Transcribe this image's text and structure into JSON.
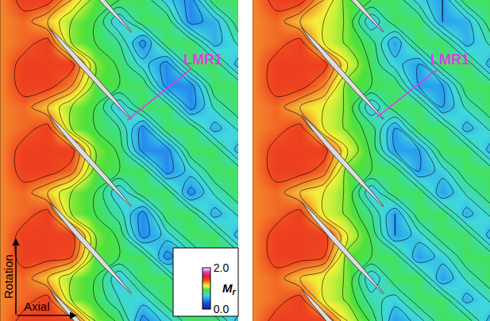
{
  "chart_data": {
    "type": "contour",
    "tick_labels": false,
    "axis_labels": {
      "x": "Axial",
      "y": "Rotation"
    },
    "colorbar": {
      "title": {
        "symbol": "M",
        "subscript": "r"
      },
      "range": [
        0,
        2
      ],
      "ticks": [
        {
          "value": 0,
          "label": "0.0"
        },
        {
          "value": 2,
          "label": "2.0"
        }
      ]
    },
    "panels": [
      {
        "annotation": "LMR1",
        "values": [
          [
            1.3,
            1.45,
            1.45,
            1.2,
            0.95,
            0.9,
            0.88,
            0.65,
            0.45,
            0.88,
            0.88
          ],
          [
            1.3,
            1.35,
            1.2,
            1.0,
            0.9,
            0.6,
            0.88,
            0.88,
            0.45,
            0.55,
            0.88
          ],
          [
            1.3,
            1.35,
            1.45,
            1.0,
            0.9,
            0.8,
            0.45,
            0.88,
            0.88,
            0.55,
            0.72
          ],
          [
            1.3,
            1.45,
            1.45,
            1.45,
            1.0,
            0.88,
            0.65,
            0.45,
            0.88,
            0.88,
            0.55
          ],
          [
            1.3,
            1.45,
            1.45,
            1.3,
            0.95,
            0.9,
            0.88,
            0.45,
            0.45,
            0.88,
            0.88
          ],
          [
            1.3,
            1.35,
            1.2,
            1.0,
            0.9,
            0.6,
            0.88,
            0.88,
            0.45,
            0.72,
            0.88
          ],
          [
            1.3,
            1.35,
            1.45,
            1.0,
            0.9,
            0.8,
            0.45,
            0.88,
            0.88,
            0.55,
            0.72
          ],
          [
            1.3,
            1.45,
            1.45,
            1.45,
            1.0,
            0.88,
            0.45,
            0.45,
            0.88,
            0.88,
            0.55
          ],
          [
            1.3,
            1.45,
            1.45,
            1.35,
            0.95,
            0.9,
            0.88,
            0.45,
            0.65,
            0.88,
            0.88
          ],
          [
            1.3,
            1.35,
            1.2,
            1.0,
            0.9,
            0.6,
            0.88,
            0.88,
            0.45,
            0.72,
            0.88
          ],
          [
            1.3,
            1.35,
            1.45,
            1.0,
            0.9,
            0.75,
            0.45,
            0.88,
            0.88,
            0.55,
            0.72
          ],
          [
            1.3,
            1.45,
            1.45,
            1.45,
            1.0,
            0.88,
            0.45,
            0.65,
            0.88,
            0.88,
            0.55
          ],
          [
            1.3,
            1.45,
            1.45,
            1.4,
            0.95,
            0.9,
            0.88,
            0.45,
            0.65,
            0.88,
            0.88
          ],
          [
            1.3,
            1.35,
            1.2,
            1.0,
            0.9,
            0.6,
            0.88,
            0.88,
            0.45,
            0.72,
            0.88
          ],
          [
            1.3,
            1.35,
            1.45,
            1.0,
            0.9,
            0.7,
            0.65,
            0.88,
            0.88,
            0.55,
            0.72
          ],
          [
            1.3,
            1.45,
            1.45,
            1.45,
            1.0,
            0.88,
            0.45,
            0.65,
            0.88,
            0.88,
            0.55
          ]
        ]
      },
      {
        "annotation": "LMR1",
        "values": [
          [
            1.3,
            1.45,
            1.45,
            1.2,
            0.95,
            0.9,
            0.88,
            0.65,
            0.5,
            0.88,
            0.88
          ],
          [
            1.3,
            1.35,
            1.2,
            1.1,
            0.98,
            0.6,
            0.88,
            0.88,
            0.5,
            0.55,
            0.88
          ],
          [
            1.3,
            1.35,
            1.45,
            1.1,
            0.98,
            0.85,
            0.5,
            0.88,
            0.88,
            0.55,
            0.72
          ],
          [
            1.3,
            1.45,
            1.45,
            1.45,
            1.1,
            0.88,
            0.65,
            0.5,
            0.88,
            0.88,
            0.55
          ],
          [
            1.3,
            1.45,
            1.45,
            1.3,
            0.95,
            0.9,
            0.88,
            0.5,
            0.5,
            0.88,
            0.88
          ],
          [
            1.3,
            1.35,
            1.2,
            1.1,
            0.98,
            0.6,
            0.88,
            0.88,
            0.5,
            0.72,
            0.88
          ],
          [
            1.3,
            1.35,
            1.45,
            1.1,
            0.98,
            0.85,
            0.5,
            0.88,
            0.88,
            0.55,
            0.72
          ],
          [
            1.3,
            1.45,
            1.45,
            1.45,
            1.1,
            0.88,
            0.5,
            0.5,
            0.88,
            0.88,
            0.55
          ],
          [
            1.3,
            1.45,
            1.45,
            1.35,
            0.95,
            0.9,
            0.88,
            0.5,
            0.65,
            0.88,
            0.88
          ],
          [
            1.3,
            1.35,
            1.2,
            1.1,
            0.98,
            0.6,
            0.88,
            0.88,
            0.5,
            0.72,
            0.88
          ],
          [
            1.3,
            1.35,
            1.45,
            1.1,
            0.98,
            0.8,
            0.5,
            0.88,
            0.88,
            0.55,
            0.72
          ],
          [
            1.3,
            1.45,
            1.45,
            1.45,
            1.1,
            0.88,
            0.5,
            0.65,
            0.88,
            0.88,
            0.55
          ],
          [
            1.3,
            1.45,
            1.45,
            1.4,
            0.95,
            0.9,
            0.88,
            0.5,
            0.65,
            0.88,
            0.88
          ],
          [
            1.3,
            1.35,
            1.2,
            1.1,
            0.98,
            0.6,
            0.88,
            0.88,
            0.5,
            0.72,
            0.88
          ],
          [
            1.3,
            1.35,
            1.45,
            1.1,
            0.98,
            0.75,
            0.65,
            0.88,
            0.88,
            0.55,
            0.72
          ],
          [
            1.3,
            1.45,
            1.45,
            1.45,
            1.1,
            0.88,
            0.5,
            0.65,
            0.88,
            0.88,
            0.55
          ]
        ]
      }
    ]
  }
}
